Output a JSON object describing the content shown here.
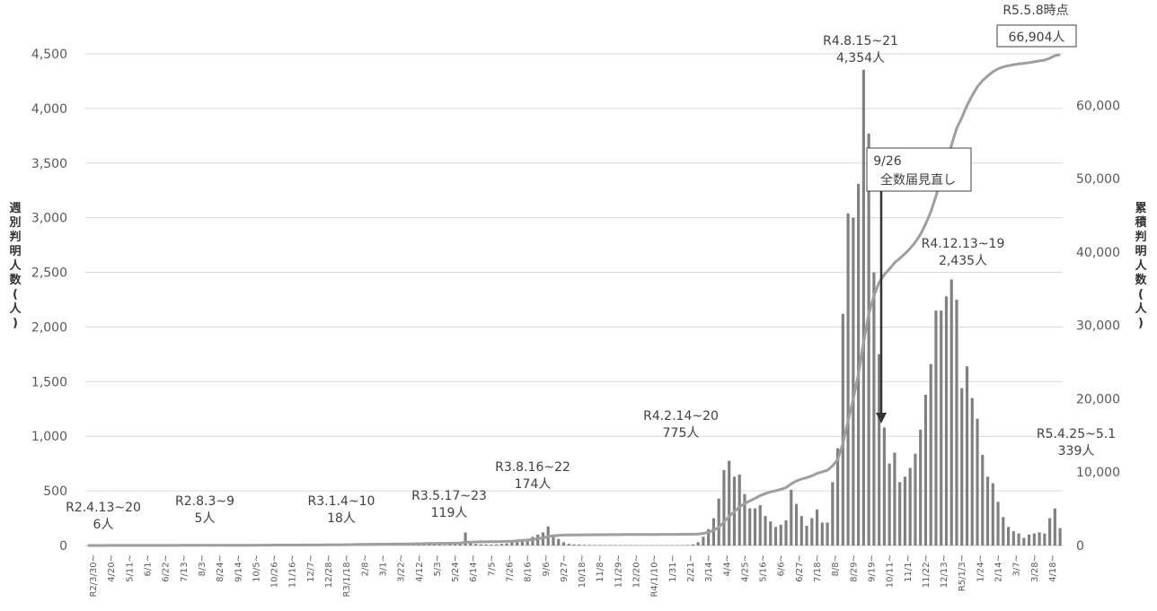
{
  "chart_data": {
    "type": "bar+line",
    "y_left_label": "週別判明人数(人)",
    "y_right_label": "累積判明人数(人)",
    "y_left_ticks": [
      "0",
      "500",
      "1,000",
      "1,500",
      "2,000",
      "2,500",
      "3,000",
      "3,500",
      "4,000",
      "4,500"
    ],
    "y_right_ticks": [
      "0",
      "10,000",
      "20,000",
      "30,000",
      "40,000",
      "50,000",
      "60,000"
    ],
    "ylim_left": [
      0,
      4500
    ],
    "ylim_right": [
      0,
      67000
    ],
    "x_labels": [
      "R2/3/30~",
      "4/20~",
      "5/11~",
      "6/1~",
      "6/22~",
      "7/13~",
      "8/3~",
      "8/24~",
      "9/14~",
      "10/5~",
      "10/26~",
      "11/16~",
      "12/7~",
      "12/28~",
      "R3/1/18~",
      "2/8~",
      "3/1~",
      "3/22~",
      "4/12~",
      "5/3~",
      "5/24~",
      "6/14~",
      "7/5~",
      "7/26~",
      "8/16~",
      "9/6~",
      "9/27~",
      "10/18~",
      "11/8~",
      "11/29~",
      "12/20~",
      "R4/1/10~",
      "1/31~",
      "2/21~",
      "3/14~",
      "4/4~",
      "4/25~",
      "5/16~",
      "6/6~",
      "6/27~",
      "7/18~",
      "8/8~",
      "8/29~",
      "9/19~",
      "10/11~",
      "11/1~",
      "11/22~",
      "12/13~",
      "R5/1/3~",
      "1/24~",
      "2/14~",
      "3/7~",
      "3/28~",
      "4/18~"
    ],
    "weekly": [
      0,
      0,
      2,
      3,
      6,
      2,
      1,
      0,
      0,
      0,
      0,
      0,
      0,
      0,
      0,
      0,
      1,
      2,
      3,
      2,
      1,
      1,
      1,
      1,
      2,
      2,
      2,
      2,
      1,
      1,
      1,
      2,
      3,
      5,
      4,
      3,
      2,
      2,
      2,
      2,
      1,
      2,
      2,
      2,
      3,
      3,
      4,
      5,
      6,
      8,
      10,
      15,
      18,
      12,
      10,
      8,
      6,
      5,
      4,
      5,
      6,
      8,
      10,
      12,
      18,
      14,
      12,
      10,
      8,
      6,
      8,
      10,
      12,
      119,
      20,
      15,
      12,
      10,
      8,
      10,
      15,
      20,
      30,
      40,
      50,
      60,
      80,
      100,
      120,
      174,
      100,
      60,
      30,
      15,
      10,
      8,
      6,
      5,
      5,
      5,
      4,
      4,
      4,
      4,
      4,
      4,
      4,
      3,
      3,
      3,
      3,
      3,
      3,
      3,
      3,
      4,
      5,
      10,
      30,
      80,
      150,
      250,
      430,
      690,
      775,
      630,
      650,
      470,
      340,
      340,
      370,
      270,
      220,
      170,
      190,
      230,
      510,
      380,
      270,
      180,
      250,
      330,
      210,
      210,
      580,
      890,
      2120,
      3040,
      3000,
      3310,
      4354,
      3770,
      2500,
      1750,
      1080,
      750,
      850,
      580,
      630,
      710,
      840,
      1060,
      1380,
      1660,
      2150,
      2150,
      2280,
      2435,
      2250,
      1440,
      1640,
      1350,
      1160,
      830,
      630,
      570,
      400,
      260,
      170,
      130,
      110,
      70,
      100,
      110,
      120,
      110,
      250,
      339,
      160
    ],
    "cumulative_end": 66904,
    "annotations": [
      {
        "label": "R2.4.13~20",
        "value": "6人"
      },
      {
        "label": "R2.8.3~9",
        "value": "5人"
      },
      {
        "label": "R3.1.4~10",
        "value": "18人"
      },
      {
        "label": "R3.5.17~23",
        "value": "119人"
      },
      {
        "label": "R3.8.16~22",
        "value": "174人"
      },
      {
        "label": "R4.2.14~20",
        "value": "775人"
      },
      {
        "label": "R4.8.15~21",
        "value": "4,354人"
      },
      {
        "label": "R4.12.13~19",
        "value": "2,435人"
      },
      {
        "label": "R5.4.25~5.1",
        "value": "339人"
      },
      {
        "label": "R5.5.8時点",
        "value": "66,904人"
      },
      {
        "label": "9/26",
        "value": "全数届見直し"
      }
    ],
    "grid": true
  }
}
